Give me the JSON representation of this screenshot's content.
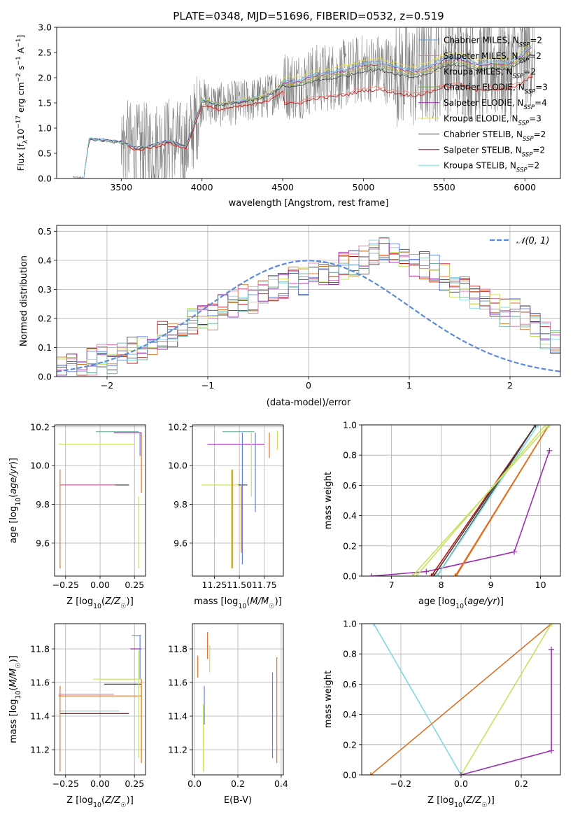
{
  "figure_title": "PLATE=0348, MJD=51696, FIBERID=0532, z=0.519",
  "colors": {
    "spectrum": "#808080",
    "models": [
      "#6a9fd8",
      "#f07b6e",
      "#d4a020",
      "#7aaa60",
      "#9b30b0",
      "#e8e040",
      "#404040",
      "#c01010",
      "#80d8e0"
    ],
    "hist": [
      "#404040",
      "#c01010",
      "#80d8e0",
      "#e07020",
      "#e070b0",
      "#6080e0",
      "#c8e060",
      "#9b30b0",
      "#70b0a0"
    ],
    "normal_curve": "#5b8bd8",
    "age_weight_lines": [
      "#9b30b0",
      "#e07020",
      "#c8e060",
      "#c01010",
      "#404040",
      "#80d8e0"
    ],
    "z_weight_lines": [
      "#80d8e0",
      "#e07020",
      "#c8e060",
      "#9b30b0"
    ]
  },
  "panel_text": {
    "p5_ylabel": "mass weight",
    "p8_ylabel": "mass weight"
  },
  "chart_data": [
    {
      "id": "spectrum",
      "type": "line",
      "xlabel": "wavelength [Angstrom, rest frame]",
      "ylabel": "Flux [f_λ 10^-17 erg cm^-2 s^-1 A^-1]",
      "xlim": [
        3100,
        6220
      ],
      "ylim": [
        0,
        3.0
      ],
      "xticks": [
        3500,
        4000,
        4500,
        5000,
        5500,
        6000
      ],
      "yticks": [
        0.0,
        0.5,
        1.0,
        1.5,
        2.0,
        2.5,
        3.0
      ],
      "grid": false,
      "legend_position": "top-right",
      "series": [
        {
          "name": "Chabrier MILES, N_SSP=2"
        },
        {
          "name": "Salpeter MILES, N_SSP=2"
        },
        {
          "name": "Kroupa MILES, N_SSP=2"
        },
        {
          "name": "Chabrier ELODIE, N_SSP=3"
        },
        {
          "name": "Salpeter ELODIE, N_SSP=4"
        },
        {
          "name": "Kroupa ELODIE, N_SSP=3"
        },
        {
          "name": "Chabrier STELIB, N_SSP=2"
        },
        {
          "name": "Salpeter STELIB, N_SSP=2"
        },
        {
          "name": "Kroupa STELIB, N_SSP=2"
        }
      ],
      "model_curve": {
        "x": [
          3270,
          3300,
          3400,
          3500,
          3600,
          3700,
          3800,
          3900,
          3950,
          4000,
          4100,
          4200,
          4300,
          4400,
          4500,
          4600,
          4700,
          4800,
          4900,
          5000,
          5100,
          5200,
          5300,
          5400,
          5500,
          5600,
          5700,
          5800,
          5900,
          6000,
          6050
        ],
        "y": [
          0.05,
          0.78,
          0.75,
          0.72,
          0.6,
          0.66,
          0.75,
          0.62,
          1.05,
          1.55,
          1.45,
          1.5,
          1.55,
          1.62,
          1.85,
          1.86,
          1.98,
          2.02,
          2.08,
          2.18,
          2.2,
          2.12,
          2.05,
          2.12,
          2.28,
          2.3,
          2.18,
          2.22,
          2.2,
          2.4,
          2.55
        ]
      }
    },
    {
      "id": "residuals",
      "type": "histogram",
      "xlabel": "(data-model)/error",
      "ylabel": "Normed distribution",
      "xlim": [
        -2.5,
        2.5
      ],
      "ylim": [
        0,
        0.52
      ],
      "xticks": [
        -2,
        -1,
        0,
        1,
        2
      ],
      "yticks": [
        0.0,
        0.1,
        0.2,
        0.3,
        0.4,
        0.5
      ],
      "grid": true,
      "legend_position": "top-right",
      "legend": [
        "𝒩(0, 1)"
      ],
      "bin_width": 0.1,
      "bin_start": -2.5,
      "hist_envelope": [
        0.02,
        0.03,
        0.04,
        0.05,
        0.07,
        0.06,
        0.07,
        0.09,
        0.1,
        0.11,
        0.14,
        0.14,
        0.16,
        0.19,
        0.21,
        0.2,
        0.24,
        0.25,
        0.27,
        0.26,
        0.29,
        0.3,
        0.31,
        0.34,
        0.33,
        0.36,
        0.36,
        0.35,
        0.38,
        0.39,
        0.4,
        0.42,
        0.44,
        0.42,
        0.41,
        0.39,
        0.38,
        0.37,
        0.34,
        0.32,
        0.3,
        0.28,
        0.26,
        0.24,
        0.22,
        0.22,
        0.2,
        0.17,
        0.14,
        0.12
      ]
    },
    {
      "id": "age_vs_z",
      "type": "errorbar",
      "xlabel": "Z [log10(Z/Z☉)]",
      "ylabel": "age [log10(age/yr)]",
      "xlim": [
        -0.33,
        0.33
      ],
      "ylim": [
        9.43,
        10.21
      ],
      "xticks": [
        -0.25,
        0.0,
        0.25
      ],
      "yticks": [
        9.6,
        9.8,
        10.0,
        10.2
      ],
      "grid": true,
      "hbars": [
        {
          "y": 10.175,
          "x0": -0.03,
          "x1": 0.28
        },
        {
          "y": 10.17,
          "x0": 0.1,
          "x1": 0.3
        },
        {
          "y": 10.11,
          "x0": -0.3,
          "x1": 0.25
        },
        {
          "y": 9.9,
          "x0": -0.29,
          "x1": 0.21
        },
        {
          "y": 9.9,
          "x0": -0.29,
          "x1": 0.11
        }
      ],
      "vbars": [
        {
          "x": -0.29,
          "y0": 9.47,
          "y1": 9.98
        },
        {
          "x": 0.28,
          "y0": 9.47,
          "y1": 9.84
        },
        {
          "x": 0.29,
          "y0": 10.05,
          "y1": 10.17
        },
        {
          "x": 0.3,
          "y0": 9.86,
          "y1": 10.17
        }
      ]
    },
    {
      "id": "age_vs_mass",
      "type": "errorbar",
      "xlabel": "mass [log10(M/M☉)]",
      "ylabel": "",
      "xlim": [
        11.03,
        11.94
      ],
      "ylim": [
        9.43,
        10.21
      ],
      "xticks": [
        11.25,
        11.5,
        11.75
      ],
      "yticks": [
        9.6,
        9.8,
        10.0,
        10.2
      ],
      "grid": true,
      "hbars": [
        {
          "y": 10.175,
          "x0": 11.33,
          "x1": 11.65
        },
        {
          "y": 10.11,
          "x0": 11.18,
          "x1": 11.75
        },
        {
          "y": 9.9,
          "x0": 11.12,
          "x1": 11.52
        },
        {
          "y": 9.9,
          "x0": 11.49,
          "x1": 11.58
        }
      ],
      "vbars": [
        {
          "x": 11.43,
          "y0": 9.47,
          "y1": 9.98
        },
        {
          "x": 11.42,
          "y0": 9.47,
          "y1": 9.98
        },
        {
          "x": 11.53,
          "y0": 9.49,
          "y1": 10.17
        },
        {
          "x": 11.52,
          "y0": 9.55,
          "y1": 9.9
        },
        {
          "x": 11.62,
          "y0": 9.84,
          "y1": 10.17
        },
        {
          "x": 11.66,
          "y0": 9.76,
          "y1": 10.17
        },
        {
          "x": 11.8,
          "y0": 10.04,
          "y1": 10.17
        },
        {
          "x": 11.88,
          "y0": 10.08,
          "y1": 10.18
        }
      ]
    },
    {
      "id": "weight_vs_age",
      "type": "line",
      "xlabel": "age [log10(age/yr)]",
      "ylabel": "mass weight",
      "xlim": [
        6.4,
        10.4
      ],
      "ylim": [
        0,
        1.0
      ],
      "xticks": [
        7,
        8,
        9,
        10
      ],
      "yticks": [
        0.0,
        0.2,
        0.4,
        0.6,
        0.8,
        1.0
      ],
      "grid": true,
      "series": [
        {
          "x": [
            6.6,
            7.7,
            9.47,
            10.18
          ],
          "y": [
            0.0,
            0.03,
            0.16,
            0.83
          ]
        },
        {
          "x": [
            8.28,
            10.17
          ],
          "y": [
            0.0,
            1.0
          ]
        },
        {
          "x": [
            8.3,
            10.17
          ],
          "y": [
            0.0,
            1.0
          ]
        },
        {
          "x": [
            7.8,
            9.9
          ],
          "y": [
            0.0,
            1.0
          ]
        },
        {
          "x": [
            7.85,
            9.9
          ],
          "y": [
            0.0,
            1.0
          ]
        },
        {
          "x": [
            7.92,
            9.9
          ],
          "y": [
            0.0,
            1.0
          ]
        },
        {
          "x": [
            7.92,
            9.95
          ],
          "y": [
            0.0,
            1.0
          ]
        },
        {
          "x": [
            7.42,
            10.17
          ],
          "y": [
            0.0,
            1.0
          ]
        },
        {
          "x": [
            7.5,
            10.1
          ],
          "y": [
            0.0,
            1.0
          ]
        }
      ]
    },
    {
      "id": "mass_vs_z",
      "type": "errorbar",
      "xlabel": "Z [log10(Z/Z☉)]",
      "ylabel": "mass [log10(M/M☉)]",
      "xlim": [
        -0.33,
        0.33
      ],
      "ylim": [
        11.05,
        11.95
      ],
      "xticks": [
        -0.25,
        0.0,
        0.25
      ],
      "yticks": [
        11.2,
        11.4,
        11.6,
        11.8
      ],
      "grid": true,
      "hbars": [
        {
          "y": 11.88,
          "x0": 0.23,
          "x1": 0.3
        },
        {
          "y": 11.8,
          "x0": 0.22,
          "x1": 0.3
        },
        {
          "y": 11.62,
          "x0": -0.05,
          "x1": 0.3
        },
        {
          "y": 11.59,
          "x0": 0.03,
          "x1": 0.3
        },
        {
          "y": 11.53,
          "x0": -0.3,
          "x1": 0.1
        },
        {
          "y": 11.52,
          "x0": -0.3,
          "x1": 0.3
        },
        {
          "y": 11.43,
          "x0": -0.3,
          "x1": 0.14
        },
        {
          "y": 11.415,
          "x0": -0.29,
          "x1": 0.21
        }
      ],
      "vbars": [
        {
          "x": -0.29,
          "y0": 11.07,
          "y1": 11.58
        },
        {
          "x": 0.28,
          "y0": 11.15,
          "y1": 11.79
        },
        {
          "x": 0.29,
          "y0": 11.62,
          "y1": 11.88
        },
        {
          "x": 0.3,
          "y0": 11.12,
          "y1": 11.62
        }
      ]
    },
    {
      "id": "mass_vs_ebv",
      "type": "errorbar",
      "xlabel": "E(B-V)",
      "ylabel": "",
      "xlim": [
        -0.01,
        0.41
      ],
      "ylim": [
        11.05,
        11.95
      ],
      "xticks": [
        0.0,
        0.2,
        0.4
      ],
      "yticks": [
        11.2,
        11.4,
        11.6,
        11.8
      ],
      "grid": true,
      "vbars": [
        {
          "x": 0.015,
          "y0": 11.63,
          "y1": 11.76
        },
        {
          "x": 0.04,
          "y0": 11.07,
          "y1": 11.47
        },
        {
          "x": 0.045,
          "y0": 11.35,
          "y1": 11.58
        },
        {
          "x": 0.06,
          "y0": 11.74,
          "y1": 11.9
        },
        {
          "x": 0.07,
          "y0": 11.66,
          "y1": 11.82
        },
        {
          "x": 0.36,
          "y0": 11.15,
          "y1": 11.66
        },
        {
          "x": 0.38,
          "y0": 11.12,
          "y1": 11.75
        }
      ]
    },
    {
      "id": "weight_vs_z",
      "type": "line",
      "xlabel": "Z [log10(Z/Z☉)]",
      "ylabel": "mass weight",
      "xlim": [
        -0.33,
        0.33
      ],
      "ylim": [
        0,
        1.0
      ],
      "xticks": [
        -0.2,
        0.0,
        0.2
      ],
      "yticks": [
        0.0,
        0.2,
        0.4,
        0.6,
        0.8,
        1.0
      ],
      "grid": true,
      "series": [
        {
          "x": [
            -0.29,
            0.0
          ],
          "y": [
            1.0,
            0.0
          ]
        },
        {
          "x": [
            -0.3,
            0.3
          ],
          "y": [
            0.0,
            1.0
          ]
        },
        {
          "x": [
            0.0,
            0.3
          ],
          "y": [
            0.0,
            1.0
          ]
        },
        {
          "x": [
            0.0,
            0.3,
            0.3
          ],
          "y": [
            0.0,
            0.16,
            0.83
          ]
        }
      ]
    }
  ]
}
